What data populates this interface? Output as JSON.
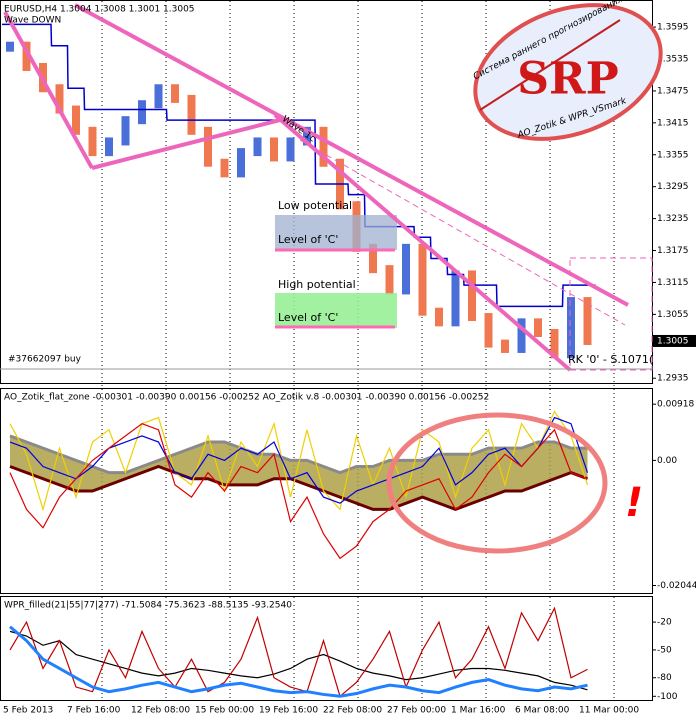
{
  "chart_data": [
    {
      "type": "price",
      "title": "EURUSD,H4  1.3004 1.3008 1.3001 1.3005",
      "subtitle": "Wave DOWN",
      "values": [
        1.356,
        1.352,
        1.348,
        1.344,
        1.34,
        1.336,
        1.338,
        1.342,
        1.345,
        1.348,
        1.346,
        1.34,
        1.334,
        1.332,
        1.336,
        1.338,
        1.335,
        1.338,
        1.34,
        1.334,
        1.326,
        1.318,
        1.314,
        1.31,
        1.318,
        1.306,
        1.304,
        1.313,
        1.305,
        1.3,
        1.299,
        1.304,
        1.302,
        1.298,
        1.308,
        1.3005
      ],
      "stop_line": [
        1.36,
        1.36,
        1.36,
        1.356,
        1.348,
        1.344,
        1.344,
        1.344,
        1.344,
        1.344,
        1.342,
        1.342,
        1.342,
        1.342,
        1.342,
        1.342,
        1.342,
        1.342,
        1.342,
        1.33,
        1.33,
        1.328,
        1.322,
        1.322,
        1.322,
        1.32,
        1.316,
        1.313,
        1.311,
        1.311,
        1.307,
        1.307,
        1.307,
        1.307,
        1.311,
        1.311
      ],
      "up_color": "#4a6fd8",
      "down_color": "#f07850",
      "stop_color": "#0000cc",
      "ylim": [
        1.2926,
        1.3644
      ],
      "yticks": [
        1.3595,
        1.3535,
        1.3475,
        1.3415,
        1.3355,
        1.3295,
        1.3235,
        1.3175,
        1.3115,
        1.3055,
        1.2935
      ],
      "last_price": 1.3005,
      "annotations": {
        "low": "Low potential",
        "level_low": "Level of 'C'",
        "high": "High potential",
        "level_high": "Level of 'C'",
        "order": "#37662097 buy",
        "rk": "RK '0' - S.1071(",
        "wave": "Wave 1c"
      },
      "logo": {
        "title": "SRP",
        "arc": "Система раннего прогнозирования",
        "authors": "AO_Zotik & WPR_VSmark"
      }
    },
    {
      "type": "line",
      "title": "AO_Zotik_flat_zone -0.00301 -0.00390 0.00156 -0.00252   AO_Zotik v.8 -0.00301 -0.00390 0.00156 -0.00252",
      "ylim": [
        -0.0215,
        0.0115
      ],
      "yticks": [
        0.00918,
        {
          "value": 0,
          "label": "0.00"
        },
        -0.02044
      ],
      "mark": "!",
      "series": [
        {
          "color": "#8a8a8a",
          "values": [
            0.004,
            0.003,
            0.002,
            0.001,
            0,
            -0.001,
            -0.002,
            -0.002,
            -0.001,
            0,
            0.001,
            0.002,
            0.003,
            0.003,
            0.002,
            0.001,
            0.001,
            0,
            0,
            -0.001,
            -0.002,
            -0.001,
            -0.001,
            0,
            0,
            0,
            0.001,
            0.001,
            0.001,
            0.002,
            0.002,
            0.002,
            0.003,
            0.003,
            0.002,
            0.002
          ]
        },
        {
          "color": "#6b0000",
          "values": [
            -0.001,
            -0.002,
            -0.003,
            -0.004,
            -0.005,
            -0.005,
            -0.004,
            -0.003,
            -0.002,
            -0.001,
            -0.002,
            -0.003,
            -0.003,
            -0.004,
            -0.004,
            -0.004,
            -0.003,
            -0.003,
            -0.004,
            -0.005,
            -0.006,
            -0.007,
            -0.008,
            -0.008,
            -0.007,
            -0.006,
            -0.007,
            -0.008,
            -0.007,
            -0.006,
            -0.005,
            -0.005,
            -0.004,
            -0.003,
            -0.002,
            -0.003
          ]
        },
        {
          "color": "#f0d000",
          "values": [
            0.006,
            0.001,
            -0.008,
            0.002,
            -0.006,
            0.003,
            0.005,
            -0.002,
            0.006,
            0.007,
            -0.002,
            -0.004,
            0.004,
            -0.005,
            0.003,
            -0.001,
            0.006,
            -0.006,
            0.005,
            -0.005,
            -0.008,
            0.004,
            -0.004,
            0.002,
            -0.006,
            0.005,
            0.003,
            -0.006,
            0.002,
            0.005,
            -0.004,
            0.006,
            0.002,
            0.008,
            0.004,
            -0.004
          ]
        },
        {
          "color": "#0000e0",
          "values": [
            0.003,
            0.002,
            -0.001,
            -0.002,
            -0.003,
            -0.001,
            0.002,
            0.003,
            0.004,
            0.003,
            -0.002,
            -0.003,
            0.001,
            0,
            0.002,
            0.001,
            0.003,
            -0.003,
            -0.002,
            -0.006,
            -0.007,
            -0.005,
            -0.004,
            -0.003,
            -0.002,
            -0.001,
            0.002,
            -0.004,
            -0.002,
            0.001,
            0.002,
            -0.001,
            0.002,
            0.007,
            0.006,
            -0.002
          ]
        },
        {
          "color": "#e00000",
          "values": [
            -0.002,
            -0.008,
            -0.011,
            -0.006,
            -0.003,
            0,
            0.002,
            0.004,
            0.006,
            0.005,
            -0.004,
            -0.006,
            -0.002,
            -0.005,
            -0.001,
            -0.002,
            0.001,
            -0.01,
            -0.006,
            -0.012,
            -0.016,
            -0.014,
            -0.01,
            -0.008,
            -0.005,
            -0.004,
            -0.003,
            -0.008,
            -0.006,
            -0.002,
            0.001,
            -0.001,
            0.002,
            0.005,
            -0.002,
            -0.003
          ]
        }
      ]
    },
    {
      "type": "line",
      "title": "WPR_filled(21|55|77|277) -71.5084 -75.3623 -88.5135 -93.2540",
      "ylim": [
        -104,
        6
      ],
      "yticks": [
        -20,
        -50,
        -80,
        -100
      ],
      "series": [
        {
          "color": "#000000",
          "values": [
            -30,
            -35,
            -45,
            -40,
            -55,
            -60,
            -65,
            -70,
            -75,
            -78,
            -75,
            -70,
            -72,
            -75,
            -78,
            -80,
            -76,
            -70,
            -60,
            -55,
            -62,
            -70,
            -75,
            -78,
            -82,
            -80,
            -76,
            -72,
            -70,
            -70,
            -72,
            -75,
            -78,
            -85,
            -88,
            -93
          ]
        },
        {
          "color": "#c00000",
          "values": [
            -50,
            -20,
            -70,
            -40,
            -90,
            -95,
            -50,
            -80,
            -30,
            -70,
            -90,
            -60,
            -95,
            -85,
            -60,
            -15,
            -80,
            -90,
            -95,
            -40,
            -100,
            -85,
            -60,
            -30,
            -90,
            -50,
            -20,
            -80,
            -60,
            -25,
            -70,
            -10,
            -40,
            -5,
            -80,
            -71
          ]
        },
        {
          "color": "#2080ff",
          "values": [
            -25,
            -40,
            -60,
            -70,
            -80,
            -90,
            -95,
            -92,
            -88,
            -85,
            -90,
            -95,
            -92,
            -88,
            -86,
            -90,
            -94,
            -96,
            -95,
            -98,
            -100,
            -97,
            -92,
            -88,
            -90,
            -94,
            -96,
            -90,
            -85,
            -82,
            -88,
            -92,
            -94,
            -90,
            -92,
            -88
          ]
        }
      ]
    }
  ],
  "time_axis": [
    "5 Feb 2013",
    "7 Feb 16:00",
    "12 Feb 08:00",
    "15 Feb 00:00",
    "19 Feb 16:00",
    "22 Feb 08:00",
    "27 Feb 00:00",
    "1 Mar 16:00",
    "6 Mar 08:00",
    "11 Mar 00:00"
  ]
}
